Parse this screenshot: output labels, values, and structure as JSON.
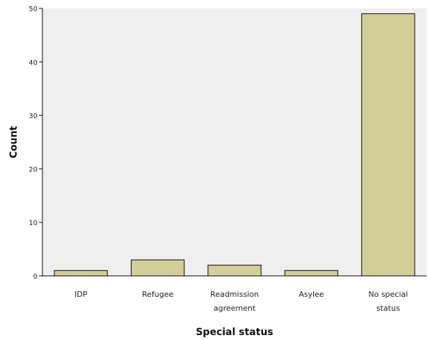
{
  "chart_data": {
    "type": "bar",
    "categories": [
      [
        "IDP"
      ],
      [
        "Refugee"
      ],
      [
        "Readmission",
        "agreement"
      ],
      [
        "Asylee"
      ],
      [
        "No special",
        "status"
      ]
    ],
    "values": [
      1,
      3,
      2,
      1,
      49
    ],
    "xlabel": "Special status",
    "ylabel": "Count",
    "ylim": [
      0,
      50
    ],
    "yticks": [
      0,
      10,
      20,
      30,
      40,
      50
    ],
    "grid": false,
    "legend": "none",
    "colors": {
      "plot_background": "#efefef",
      "bar_fill": "#d4cf99",
      "bar_stroke": "#000000"
    }
  }
}
